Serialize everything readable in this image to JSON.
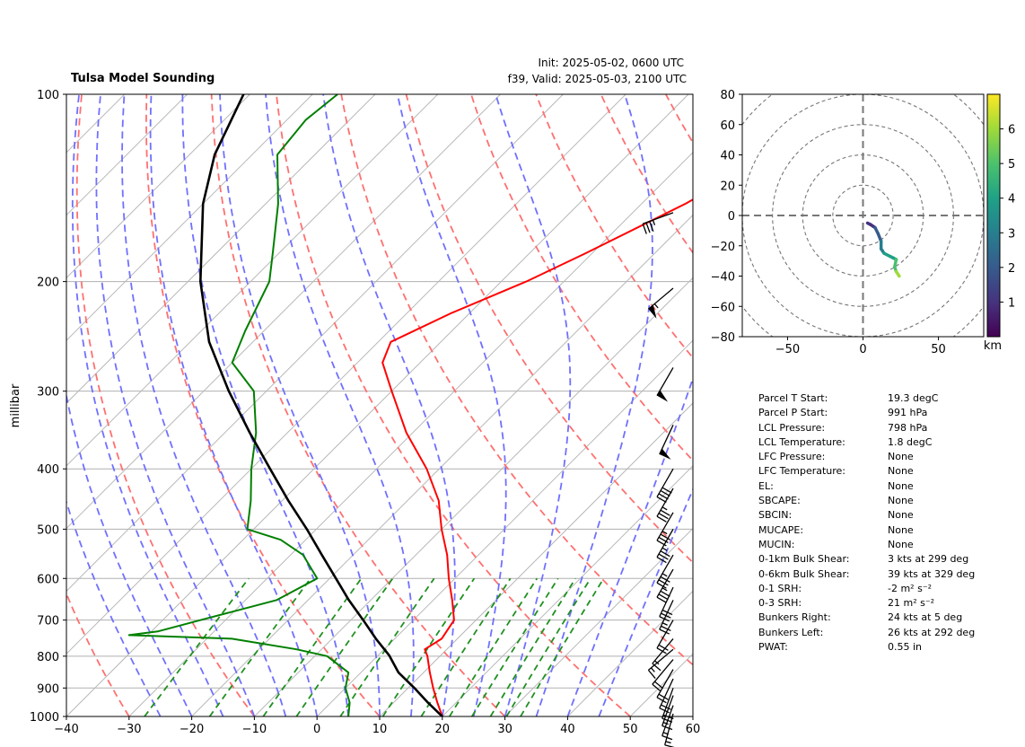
{
  "header": {
    "title": "Tulsa Model Sounding",
    "init": "Init: 2025-05-02, 0600 UTC",
    "valid": "f39, Valid: 2025-05-03, 2100 UTC"
  },
  "stats": [
    {
      "label": "Parcel T Start:",
      "value": "19.3 degC"
    },
    {
      "label": "Parcel P Start:",
      "value": "991 hPa"
    },
    {
      "label": "LCL Pressure:",
      "value": "798 hPa"
    },
    {
      "label": "LCL Temperature:",
      "value": "1.8 degC"
    },
    {
      "label": "LFC Pressure:",
      "value": "None"
    },
    {
      "label": "LFC Temperature:",
      "value": "None"
    },
    {
      "label": "EL:",
      "value": "None"
    },
    {
      "label": "SBCAPE:",
      "value": "None"
    },
    {
      "label": "SBCIN:",
      "value": "None"
    },
    {
      "label": "MUCAPE:",
      "value": "None"
    },
    {
      "label": "MUCIN:",
      "value": "None"
    },
    {
      "label": "0-1km Bulk Shear:",
      "value": "3 kts at 299 deg"
    },
    {
      "label": "0-6km Bulk Shear:",
      "value": "39 kts at 329 deg"
    },
    {
      "label": "0-1 SRH:",
      "value": "-2 m² s⁻²"
    },
    {
      "label": "0-3 SRH:",
      "value": "21 m² s⁻²"
    },
    {
      "label": "Bunkers Right:",
      "value": "24 kts at 5 deg"
    },
    {
      "label": "Bunkers Left:",
      "value": "26 kts at 292 deg"
    },
    {
      "label": "PWAT:",
      "value": "0.55 in"
    }
  ],
  "chart_data": [
    {
      "type": "line",
      "kind": "skew-t log-p",
      "ylabel": "millibar",
      "xlim": [
        -40,
        60
      ],
      "ylim": [
        1000,
        100
      ],
      "x_ticks": [
        "−40",
        "−30",
        "−20",
        "−10",
        "0",
        "10",
        "20",
        "30",
        "40",
        "50",
        "60"
      ],
      "y_ticks": [
        "100",
        "200",
        "300",
        "400",
        "500",
        "600",
        "700",
        "800",
        "900",
        "1000"
      ],
      "colors": {
        "temperature": "#ff0000",
        "dewpoint": "#008000",
        "parcel": "#000000",
        "dry_adiabat": "#ff7070",
        "moist_adiabat": "#7070ff",
        "mixing_ratio": "#209020"
      },
      "series": [
        {
          "role": "temperature",
          "points": [
            [
              1000,
              20
            ],
            [
              950,
              17
            ],
            [
              900,
              14
            ],
            [
              850,
              11
            ],
            [
              800,
              8
            ],
            [
              780,
              6.5
            ],
            [
              750,
              7.5
            ],
            [
              700,
              6.5
            ],
            [
              650,
              3
            ],
            [
              600,
              -1
            ],
            [
              550,
              -5
            ],
            [
              500,
              -10
            ],
            [
              450,
              -15
            ],
            [
              400,
              -22
            ],
            [
              350,
              -31
            ],
            [
              300,
              -40
            ],
            [
              270,
              -46
            ],
            [
              250,
              -48
            ],
            [
              225,
              -43
            ],
            [
              200,
              -36
            ],
            [
              180,
              -31
            ],
            [
              150,
              -23
            ],
            [
              125,
              -17
            ],
            [
              100,
              -12
            ]
          ]
        },
        {
          "role": "dewpoint",
          "points": [
            [
              1000,
              5
            ],
            [
              950,
              3
            ],
            [
              900,
              0
            ],
            [
              850,
              -2
            ],
            [
              800,
              -8
            ],
            [
              780,
              -14
            ],
            [
              750,
              -26
            ],
            [
              740,
              -43
            ],
            [
              730,
              -39
            ],
            [
              700,
              -34
            ],
            [
              650,
              -25
            ],
            [
              600,
              -22
            ],
            [
              550,
              -28
            ],
            [
              520,
              -34
            ],
            [
              500,
              -41
            ],
            [
              450,
              -45
            ],
            [
              400,
              -50
            ],
            [
              350,
              -55
            ],
            [
              300,
              -62
            ],
            [
              270,
              -70
            ],
            [
              240,
              -73
            ],
            [
              200,
              -77
            ],
            [
              180,
              -81
            ],
            [
              150,
              -88
            ],
            [
              125,
              -96
            ],
            [
              110,
              -97
            ],
            [
              100,
              -96
            ]
          ]
        },
        {
          "role": "parcel",
          "points": [
            [
              1000,
              20
            ],
            [
              950,
              15.5
            ],
            [
              900,
              11
            ],
            [
              850,
              6
            ],
            [
              798,
              1.8
            ],
            [
              750,
              -3
            ],
            [
              700,
              -8
            ],
            [
              650,
              -13.5
            ],
            [
              600,
              -19
            ],
            [
              550,
              -25
            ],
            [
              500,
              -31.5
            ],
            [
              450,
              -39
            ],
            [
              400,
              -47
            ],
            [
              350,
              -56
            ],
            [
              300,
              -66
            ],
            [
              250,
              -77
            ],
            [
              200,
              -88
            ],
            [
              150,
              -100
            ],
            [
              125,
              -106
            ],
            [
              100,
              -111
            ]
          ]
        }
      ],
      "wind_barbs": [
        {
          "p": 990,
          "knots": 15,
          "dir": 345
        },
        {
          "p": 960,
          "knots": 15,
          "dir": 340
        },
        {
          "p": 925,
          "knots": 15,
          "dir": 340
        },
        {
          "p": 900,
          "knots": 20,
          "dir": 340
        },
        {
          "p": 870,
          "knots": 20,
          "dir": 335
        },
        {
          "p": 840,
          "knots": 20,
          "dir": 330
        },
        {
          "p": 810,
          "knots": 20,
          "dir": 320
        },
        {
          "p": 780,
          "knots": 15,
          "dir": 310
        },
        {
          "p": 750,
          "knots": 15,
          "dir": 320
        },
        {
          "p": 700,
          "knots": 20,
          "dir": 330
        },
        {
          "p": 650,
          "knots": 25,
          "dir": 335
        },
        {
          "p": 620,
          "knots": 30,
          "dir": 335
        },
        {
          "p": 580,
          "knots": 35,
          "dir": 330
        },
        {
          "p": 550,
          "knots": 35,
          "dir": 330
        },
        {
          "p": 500,
          "knots": 35,
          "dir": 330
        },
        {
          "p": 470,
          "knots": 35,
          "dir": 330
        },
        {
          "p": 430,
          "knots": 35,
          "dir": 330
        },
        {
          "p": 400,
          "knots": 40,
          "dir": 330
        },
        {
          "p": 340,
          "knots": 50,
          "dir": 335
        },
        {
          "p": 275,
          "knots": 50,
          "dir": 330
        },
        {
          "p": 205,
          "knots": 55,
          "dir": 310
        },
        {
          "p": 155,
          "knots": 35,
          "dir": 290
        }
      ]
    },
    {
      "type": "line",
      "kind": "hodograph",
      "xlim": [
        -80,
        80
      ],
      "ylim": [
        -80,
        80
      ],
      "x_ticks": [
        "−50",
        "0",
        "50"
      ],
      "y_ticks": [
        "80",
        "60",
        "40",
        "20",
        "0",
        "−20",
        "−40",
        "−60",
        "−80"
      ],
      "ring_spacing": 20,
      "colorbar": {
        "label": "km",
        "range": [
          0,
          7
        ],
        "ticks": [
          "1",
          "2",
          "3",
          "4",
          "5",
          "6"
        ]
      },
      "points": [
        [
          3,
          -5
        ],
        [
          5,
          -6
        ],
        [
          8,
          -8
        ],
        [
          10,
          -12
        ],
        [
          12,
          -17
        ],
        [
          12,
          -22
        ],
        [
          14,
          -25
        ],
        [
          18,
          -27
        ],
        [
          20,
          -28
        ],
        [
          22,
          -29
        ],
        [
          21,
          -34
        ],
        [
          22,
          -37
        ],
        [
          24,
          -40
        ]
      ]
    }
  ]
}
